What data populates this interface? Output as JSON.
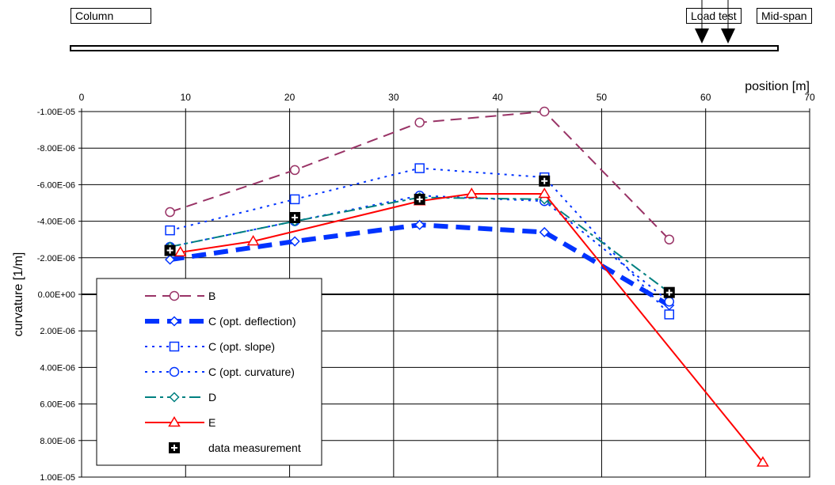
{
  "diagram": {
    "column_label": "Column",
    "load_test_label": "Load test",
    "midspan_label": "Mid-span"
  },
  "chart_data": {
    "type": "line",
    "xlabel": "position  [m]",
    "ylabel": "curvature [1/m]",
    "xlim": [
      0,
      70
    ],
    "ylim": [
      -1e-05,
      1e-05
    ],
    "y_inverted": true,
    "x_ticks": [
      0,
      10,
      20,
      30,
      40,
      50,
      60,
      70
    ],
    "y_ticks": [
      -1e-05,
      -8e-06,
      -6e-06,
      -4e-06,
      -2e-06,
      0,
      2e-06,
      4e-06,
      6e-06,
      8e-06,
      1e-05
    ],
    "y_tick_labels": [
      "-1.00E-05",
      "-8.00E-06",
      "-6.00E-06",
      "-4.00E-06",
      "-2.00E-06",
      "0.00E+00",
      "2.00E-06",
      "4.00E-06",
      "6.00E-06",
      "8.00E-06",
      "1.00E-05"
    ],
    "grid": true,
    "legend_position": "lower-left",
    "series": [
      {
        "name": "B",
        "color": "#993366",
        "dash": "14,8",
        "width": 2,
        "marker": "circle",
        "x": [
          8.5,
          20.5,
          32.5,
          44.5,
          56.5
        ],
        "y": [
          -4.5e-06,
          -6.8e-06,
          -9.4e-06,
          -1e-05,
          -3e-06
        ]
      },
      {
        "name": "C (opt. deflection)",
        "color": "#0033ff",
        "dash": "18,10",
        "width": 6,
        "marker": "diamond",
        "x": [
          8.5,
          20.5,
          32.5,
          44.5,
          56.5
        ],
        "y": [
          -1.9e-06,
          -2.9e-06,
          -3.8e-06,
          -3.4e-06,
          6e-07
        ]
      },
      {
        "name": "C (opt. slope)",
        "color": "#0033ff",
        "dash": "3,6",
        "width": 2,
        "marker": "square",
        "x": [
          8.5,
          20.5,
          32.5,
          44.5,
          56.5
        ],
        "y": [
          -3.5e-06,
          -5.2e-06,
          -6.9e-06,
          -6.4e-06,
          1.1e-06
        ]
      },
      {
        "name": "C (opt. curvature)",
        "color": "#0033ff",
        "dash": "3,6",
        "width": 2,
        "marker": "circle",
        "x": [
          8.5,
          20.5,
          32.5,
          44.5,
          56.5
        ],
        "y": [
          -2.6e-06,
          -4e-06,
          -5.4e-06,
          -5.1e-06,
          4e-07
        ]
      },
      {
        "name": "D",
        "color": "#008080",
        "dash": "14,5,4,5",
        "width": 2,
        "marker": "diamond",
        "x": [
          8.5,
          20.5,
          32.5,
          44.5,
          56.5
        ],
        "y": [
          -2.6e-06,
          -4e-06,
          -5.3e-06,
          -5.2e-06,
          -1e-07
        ]
      },
      {
        "name": "E",
        "color": "#ff0000",
        "dash": "",
        "width": 2,
        "marker": "triangle",
        "x": [
          9.5,
          16.5,
          32.5,
          37.5,
          44.5,
          65.5
        ],
        "y": [
          -2.3e-06,
          -2.9e-06,
          -5.1e-06,
          -5.5e-06,
          -5.5e-06,
          9.2e-06
        ]
      },
      {
        "name": "data measurement",
        "color": "#000000",
        "dash": "none",
        "width": 0,
        "marker": "plus-square",
        "x": [
          8.5,
          20.5,
          32.5,
          44.5,
          56.5
        ],
        "y": [
          -2.4e-06,
          -4.2e-06,
          -5.2e-06,
          -6.2e-06,
          -1e-07
        ]
      }
    ]
  }
}
